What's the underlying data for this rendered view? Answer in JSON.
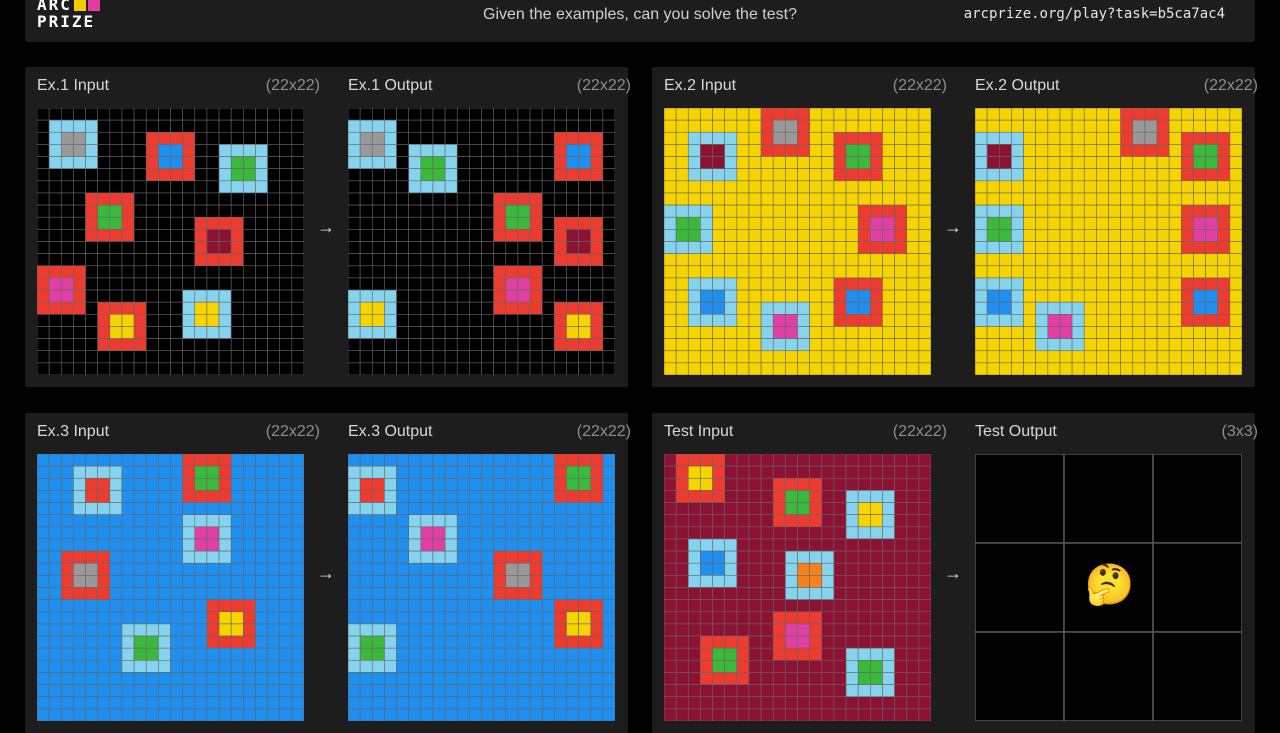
{
  "header": {
    "logo_line1": "ARC",
    "logo_line2": "PRIZE",
    "logo_colors": [
      "#f5c900",
      "#e53aa3"
    ],
    "tagline": "Given the examples, can you solve the test?",
    "url": "arcprize.org/play?task=b5ca7ac4"
  },
  "colors": {
    "K": "#000000",
    "Y": "#f5d400",
    "L": "#1f8ff0",
    "M": "#8c1233",
    "R": "#ee3b2f",
    "C": "#86d3ee",
    "G": "#3bb93a",
    "P": "#e03fa3",
    "A": "#999999",
    "B": "#1f8ff0",
    "O": "#f6821e"
  },
  "arrow_glyph": "→",
  "thinking_emoji": "🤔",
  "pairs": [
    {
      "input_label": "Ex.1 Input",
      "input_dims": "(22x22)",
      "output_label": "Ex.1 Output",
      "output_dims": "(22x22)",
      "input": {
        "bg": "K",
        "size": 22,
        "squares": [
          {
            "r": 1,
            "c": 1,
            "border": "C",
            "inner": "A"
          },
          {
            "r": 2,
            "c": 9,
            "border": "R",
            "inner": "B"
          },
          {
            "r": 3,
            "c": 15,
            "border": "C",
            "inner": "G"
          },
          {
            "r": 7,
            "c": 4,
            "border": "R",
            "inner": "G"
          },
          {
            "r": 9,
            "c": 13,
            "border": "R",
            "inner": "M"
          },
          {
            "r": 13,
            "c": 0,
            "border": "R",
            "inner": "P"
          },
          {
            "r": 15,
            "c": 12,
            "border": "C",
            "inner": "Y"
          },
          {
            "r": 16,
            "c": 5,
            "border": "R",
            "inner": "Y"
          }
        ]
      },
      "output": {
        "bg": "K",
        "size": 22,
        "squares": [
          {
            "r": 1,
            "c": 0,
            "border": "C",
            "inner": "A"
          },
          {
            "r": 3,
            "c": 5,
            "border": "C",
            "inner": "G"
          },
          {
            "r": 2,
            "c": 17,
            "border": "R",
            "inner": "B"
          },
          {
            "r": 7,
            "c": 12,
            "border": "R",
            "inner": "G"
          },
          {
            "r": 9,
            "c": 17,
            "border": "R",
            "inner": "M"
          },
          {
            "r": 13,
            "c": 12,
            "border": "R",
            "inner": "P"
          },
          {
            "r": 15,
            "c": 0,
            "border": "C",
            "inner": "Y"
          },
          {
            "r": 16,
            "c": 17,
            "border": "R",
            "inner": "Y"
          }
        ]
      }
    },
    {
      "input_label": "Ex.2 Input",
      "input_dims": "(22x22)",
      "output_label": "Ex.2 Output",
      "output_dims": "(22x22)",
      "input": {
        "bg": "Y",
        "size": 22,
        "squares": [
          {
            "r": 2,
            "c": 2,
            "border": "C",
            "inner": "M"
          },
          {
            "r": 0,
            "c": 8,
            "border": "R",
            "inner": "A"
          },
          {
            "r": 2,
            "c": 14,
            "border": "R",
            "inner": "G"
          },
          {
            "r": 8,
            "c": 0,
            "border": "C",
            "inner": "G"
          },
          {
            "r": 8,
            "c": 16,
            "border": "R",
            "inner": "P"
          },
          {
            "r": 14,
            "c": 2,
            "border": "C",
            "inner": "B"
          },
          {
            "r": 14,
            "c": 14,
            "border": "R",
            "inner": "B"
          },
          {
            "r": 16,
            "c": 8,
            "border": "C",
            "inner": "P"
          }
        ]
      },
      "output": {
        "bg": "Y",
        "size": 22,
        "squares": [
          {
            "r": 2,
            "c": 0,
            "border": "C",
            "inner": "M"
          },
          {
            "r": 0,
            "c": 12,
            "border": "R",
            "inner": "A"
          },
          {
            "r": 2,
            "c": 17,
            "border": "R",
            "inner": "G"
          },
          {
            "r": 8,
            "c": 0,
            "border": "C",
            "inner": "G"
          },
          {
            "r": 8,
            "c": 17,
            "border": "R",
            "inner": "P"
          },
          {
            "r": 14,
            "c": 0,
            "border": "C",
            "inner": "B"
          },
          {
            "r": 14,
            "c": 17,
            "border": "R",
            "inner": "B"
          },
          {
            "r": 16,
            "c": 5,
            "border": "C",
            "inner": "P"
          }
        ]
      }
    },
    {
      "input_label": "Ex.3 Input",
      "input_dims": "(22x22)",
      "output_label": "Ex.3 Output",
      "output_dims": "(22x22)",
      "input": {
        "bg": "L",
        "size": 22,
        "squares": [
          {
            "r": 1,
            "c": 3,
            "border": "C",
            "inner": "R"
          },
          {
            "r": 0,
            "c": 12,
            "border": "R",
            "inner": "G"
          },
          {
            "r": 5,
            "c": 12,
            "border": "C",
            "inner": "P"
          },
          {
            "r": 8,
            "c": 2,
            "border": "R",
            "inner": "A"
          },
          {
            "r": 12,
            "c": 14,
            "border": "R",
            "inner": "Y"
          },
          {
            "r": 14,
            "c": 7,
            "border": "C",
            "inner": "G"
          }
        ]
      },
      "output": {
        "bg": "L",
        "size": 22,
        "squares": [
          {
            "r": 1,
            "c": 0,
            "border": "C",
            "inner": "R"
          },
          {
            "r": 0,
            "c": 17,
            "border": "R",
            "inner": "G"
          },
          {
            "r": 5,
            "c": 5,
            "border": "C",
            "inner": "P"
          },
          {
            "r": 8,
            "c": 12,
            "border": "R",
            "inner": "A"
          },
          {
            "r": 12,
            "c": 17,
            "border": "R",
            "inner": "Y"
          },
          {
            "r": 14,
            "c": 0,
            "border": "C",
            "inner": "G"
          }
        ]
      }
    },
    {
      "input_label": "Test Input",
      "input_dims": "(22x22)",
      "output_label": "Test Output",
      "output_dims": "(3x3)",
      "input": {
        "bg": "M",
        "size": 22,
        "squares": [
          {
            "r": 0,
            "c": 1,
            "border": "R",
            "inner": "Y"
          },
          {
            "r": 2,
            "c": 9,
            "border": "R",
            "inner": "G"
          },
          {
            "r": 3,
            "c": 15,
            "border": "C",
            "inner": "Y"
          },
          {
            "r": 7,
            "c": 2,
            "border": "C",
            "inner": "B"
          },
          {
            "r": 8,
            "c": 10,
            "border": "C",
            "inner": "O"
          },
          {
            "r": 13,
            "c": 9,
            "border": "R",
            "inner": "P"
          },
          {
            "r": 15,
            "c": 3,
            "border": "R",
            "inner": "G"
          },
          {
            "r": 16,
            "c": 15,
            "border": "C",
            "inner": "G"
          }
        ]
      },
      "output": {
        "bg": "K",
        "size": 3,
        "squares": []
      }
    }
  ]
}
